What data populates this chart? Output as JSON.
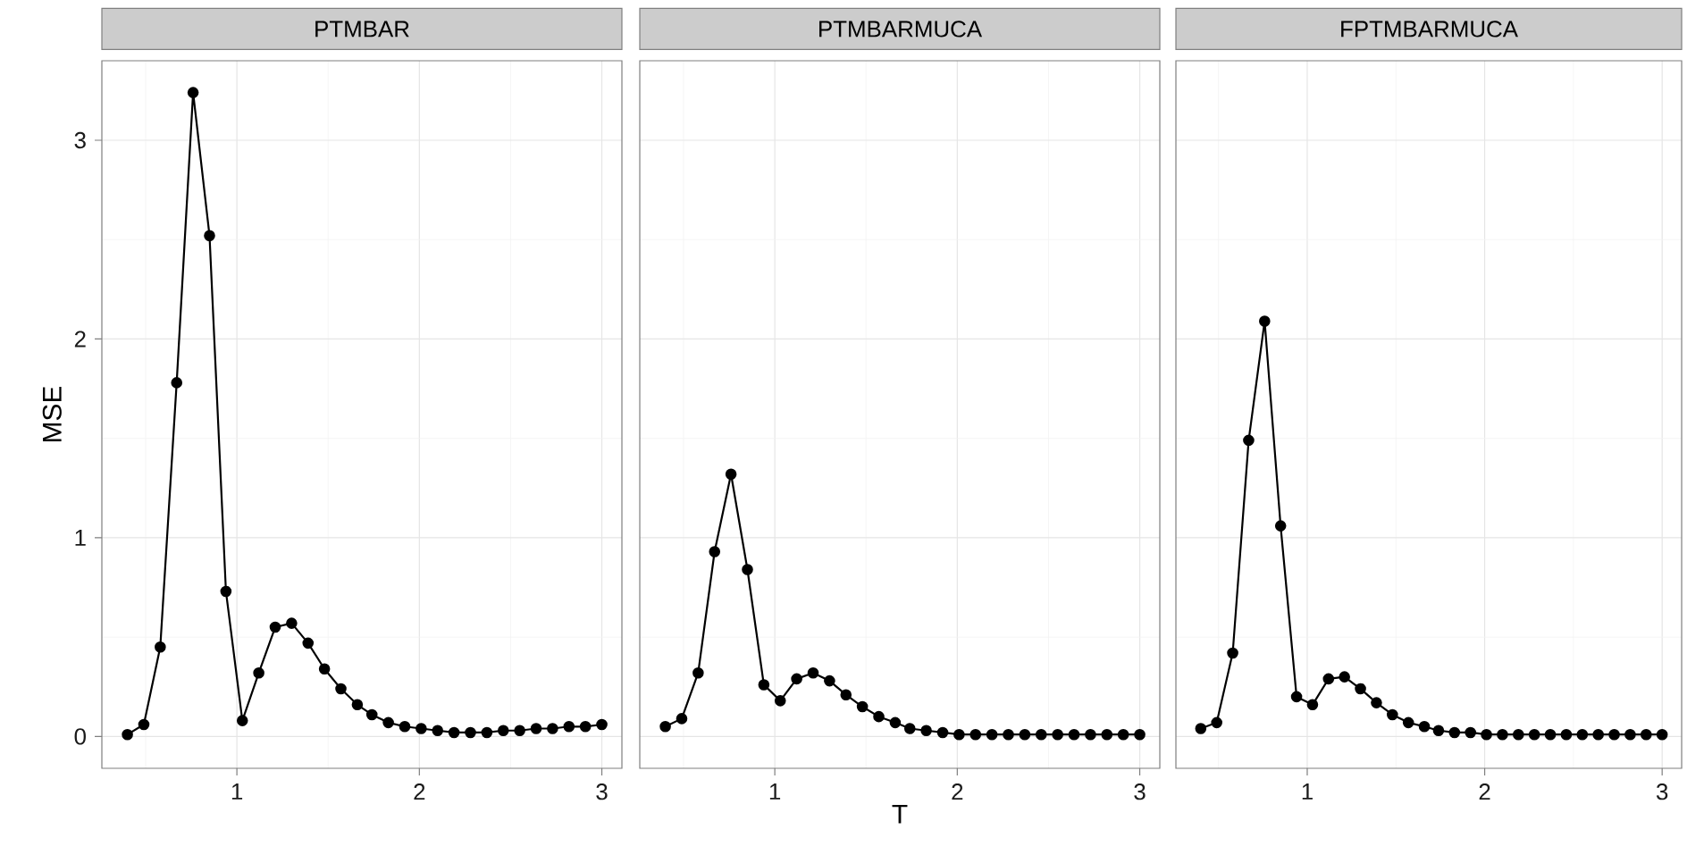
{
  "chart_data": [
    {
      "type": "line",
      "title": "PTMBAR",
      "ylabel": "MSE",
      "xlim": [
        0.26,
        3.11
      ],
      "ylim": [
        -0.16,
        3.4
      ],
      "xticks": [
        1,
        2,
        3
      ],
      "yticks": [
        0,
        1,
        2,
        3
      ],
      "grid": true,
      "marker": "circle",
      "line_style": "solid",
      "x": [
        0.4,
        0.49,
        0.58,
        0.67,
        0.76,
        0.85,
        0.94,
        1.03,
        1.12,
        1.21,
        1.3,
        1.39,
        1.48,
        1.57,
        1.66,
        1.74,
        1.83,
        1.92,
        2.01,
        2.1,
        2.19,
        2.28,
        2.37,
        2.46,
        2.55,
        2.64,
        2.73,
        2.82,
        2.91,
        3.0
      ],
      "series": [
        {
          "color": "#000000",
          "values": [
            0.01,
            0.06,
            0.45,
            1.78,
            3.24,
            2.52,
            0.73,
            0.08,
            0.32,
            0.55,
            0.57,
            0.47,
            0.34,
            0.24,
            0.16,
            0.11,
            0.07,
            0.05,
            0.04,
            0.03,
            0.02,
            0.02,
            0.02,
            0.03,
            0.03,
            0.04,
            0.04,
            0.05,
            0.05,
            0.06
          ]
        }
      ]
    },
    {
      "type": "line",
      "title": "PTMBARMUCA",
      "xlabel": "T",
      "xlim": [
        0.26,
        3.11
      ],
      "ylim": [
        -0.16,
        3.4
      ],
      "xticks": [
        1,
        2,
        3
      ],
      "yticks": [
        0,
        1,
        2,
        3
      ],
      "grid": true,
      "marker": "circle",
      "line_style": "solid",
      "tick_labels": "x",
      "x": [
        0.4,
        0.49,
        0.58,
        0.67,
        0.76,
        0.85,
        0.94,
        1.03,
        1.12,
        1.21,
        1.3,
        1.39,
        1.48,
        1.57,
        1.66,
        1.74,
        1.83,
        1.92,
        2.01,
        2.1,
        2.19,
        2.28,
        2.37,
        2.46,
        2.55,
        2.64,
        2.73,
        2.82,
        2.91,
        3.0
      ],
      "series": [
        {
          "color": "#000000",
          "values": [
            0.05,
            0.09,
            0.32,
            0.93,
            1.32,
            0.84,
            0.26,
            0.18,
            0.29,
            0.32,
            0.28,
            0.21,
            0.15,
            0.1,
            0.07,
            0.04,
            0.03,
            0.02,
            0.01,
            0.01,
            0.01,
            0.01,
            0.01,
            0.01,
            0.01,
            0.01,
            0.01,
            0.01,
            0.01,
            0.01
          ]
        }
      ]
    },
    {
      "type": "line",
      "title": "FPTMBARMUCA",
      "xlim": [
        0.26,
        3.11
      ],
      "ylim": [
        -0.16,
        3.4
      ],
      "xticks": [
        1,
        2,
        3
      ],
      "yticks": [
        0,
        1,
        2,
        3
      ],
      "grid": true,
      "marker": "circle",
      "line_style": "solid",
      "tick_labels": "x",
      "x": [
        0.4,
        0.49,
        0.58,
        0.67,
        0.76,
        0.85,
        0.94,
        1.03,
        1.12,
        1.21,
        1.3,
        1.39,
        1.48,
        1.57,
        1.66,
        1.74,
        1.83,
        1.92,
        2.01,
        2.1,
        2.19,
        2.28,
        2.37,
        2.46,
        2.55,
        2.64,
        2.73,
        2.82,
        2.91,
        3.0
      ],
      "series": [
        {
          "color": "#000000",
          "values": [
            0.04,
            0.07,
            0.42,
            1.49,
            2.09,
            1.06,
            0.2,
            0.16,
            0.29,
            0.3,
            0.24,
            0.17,
            0.11,
            0.07,
            0.05,
            0.03,
            0.02,
            0.02,
            0.01,
            0.01,
            0.01,
            0.01,
            0.01,
            0.01,
            0.01,
            0.01,
            0.01,
            0.01,
            0.01,
            0.01
          ]
        }
      ]
    }
  ]
}
